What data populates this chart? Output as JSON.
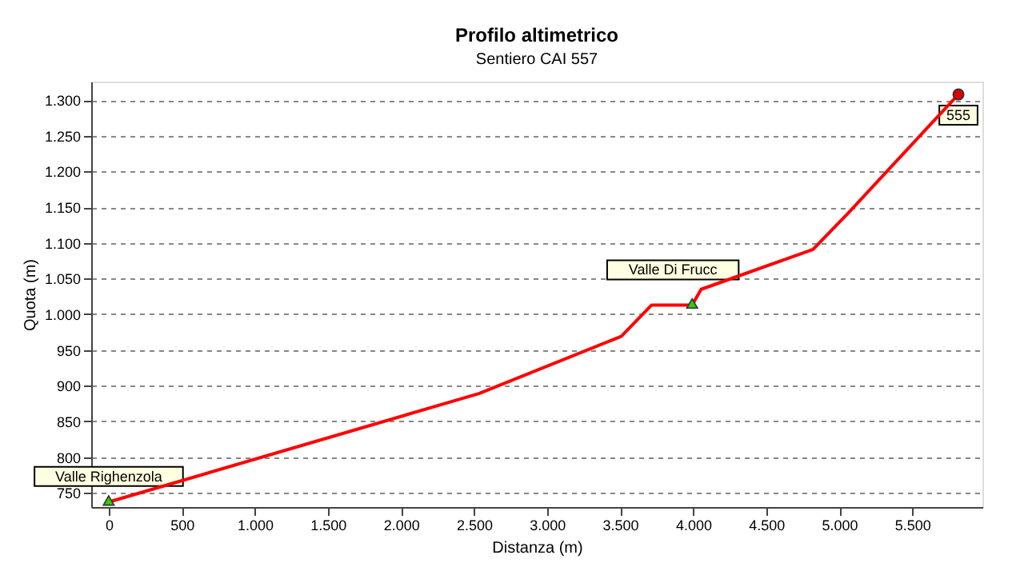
{
  "chart_data": {
    "type": "line",
    "title": "Profilo altimetrico",
    "subtitle": "Sentiero CAI 557",
    "xlabel": "Distanza (m)",
    "ylabel": "Quota (m)",
    "series": [
      {
        "type": "line",
        "color": "#ff0000",
        "x": [
          0,
          2534,
          3508,
          3716,
          3993,
          4055,
          4821,
          5058,
          5679,
          5816
        ],
        "values": [
          737,
          889,
          969,
          1013,
          1013,
          1035,
          1091,
          1141,
          1278,
          1308
        ]
      },
      {
        "type": "scatter",
        "marker": "triangle",
        "color": "#33cc00",
        "x": [
          0,
          3993
        ],
        "values": [
          737,
          1013
        ]
      },
      {
        "type": "scatter",
        "marker": "circle",
        "color": "#dd0000",
        "x": [
          5816
        ],
        "values": [
          1308
        ]
      }
    ],
    "xlim": [
      -120,
      5980
    ],
    "ylim": [
      730,
      1326
    ],
    "xticks": [
      0,
      500,
      {
        "value": 1000,
        "label": "1.000"
      },
      {
        "value": 1500,
        "label": "1.500"
      },
      {
        "value": 2000,
        "label": "2.000"
      },
      {
        "value": 2500,
        "label": "2.500"
      },
      {
        "value": 3000,
        "label": "3.000"
      },
      {
        "value": 3500,
        "label": "3.500"
      },
      {
        "value": 4000,
        "label": "4.000"
      },
      {
        "value": 4500,
        "label": "4.500"
      },
      {
        "value": 5000,
        "label": "5.000"
      },
      {
        "value": 5500,
        "label": "5.500"
      }
    ],
    "yticks": [
      750,
      800,
      850,
      900,
      950,
      {
        "value": 1000,
        "label": "1.000"
      },
      {
        "value": 1050,
        "label": "1.050"
      },
      {
        "value": 1100,
        "label": "1.100"
      },
      {
        "value": 1150,
        "label": "1.150"
      },
      {
        "value": 1200,
        "label": "1.200"
      },
      {
        "value": 1250,
        "label": "1.250"
      },
      {
        "value": 1300,
        "label": "1.300"
      }
    ],
    "grid": "y",
    "legend": false,
    "line_style": "solid",
    "annotations": [
      {
        "text": "Valle Righenzola",
        "x": 0,
        "y": 737
      },
      {
        "text": "Valle Di Frucc",
        "x": 3993,
        "y": 1013
      },
      {
        "text": "555",
        "x": 5816,
        "y": 1308
      }
    ]
  }
}
